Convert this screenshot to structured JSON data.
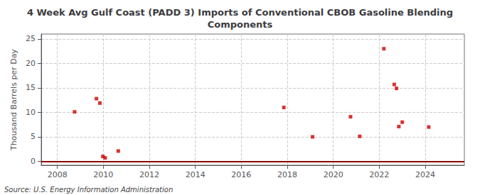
{
  "chart_data": {
    "type": "scatter",
    "title": "4 Week Avg Gulf Coast (PADD 3) Imports of Conventional CBOB Gasoline Blending\nComponents",
    "ylabel": "Thousand Barrels per Day",
    "source": "Source: U.S. Energy Information Administration",
    "xlim": [
      2007.3,
      2025.7
    ],
    "xticks": [
      2008,
      2010,
      2012,
      2014,
      2016,
      2018,
      2020,
      2022,
      2024
    ],
    "ylim": [
      -0.8,
      26
    ],
    "yticks": [
      0,
      5,
      10,
      15,
      20,
      25
    ],
    "grid": true,
    "series": [
      {
        "type": "scatter",
        "color": "#cc0000",
        "marker": "square",
        "x": [
          2008.75,
          2009.7,
          2009.85,
          2009.98,
          2010.08,
          2010.65,
          2017.85,
          2019.1,
          2020.75,
          2021.15,
          2022.2,
          2022.65,
          2022.75,
          2022.85,
          2023.0,
          2024.15
        ],
        "values": [
          10.1,
          12.8,
          11.9,
          1.0,
          0.7,
          2.1,
          11.0,
          5.0,
          9.1,
          5.1,
          23.0,
          15.7,
          14.9,
          7.1,
          8.0,
          7.0
        ]
      },
      {
        "type": "hline",
        "color": "#8b0000",
        "values": [
          0
        ]
      }
    ]
  }
}
